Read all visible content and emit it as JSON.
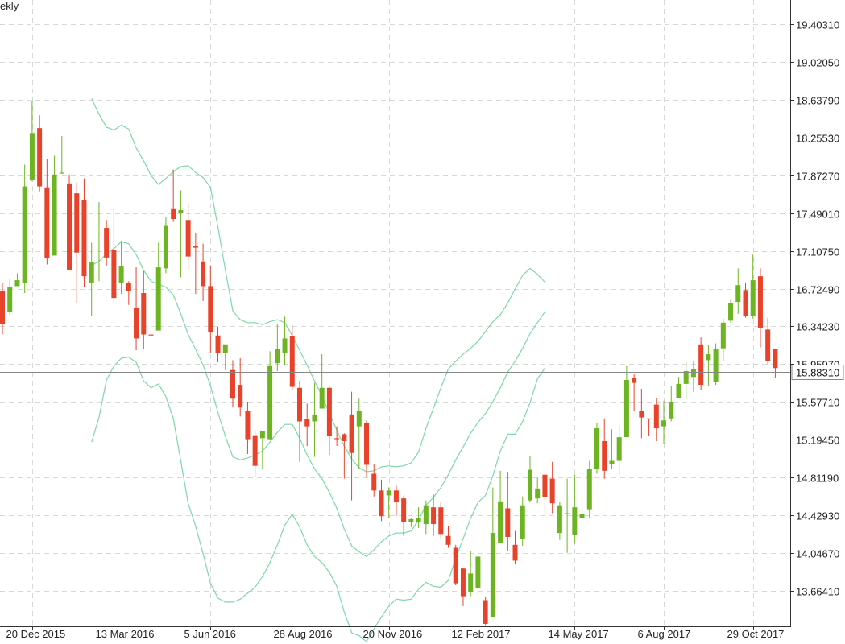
{
  "chart_data": {
    "type": "candlestick",
    "period_label": "ekly",
    "y_ticks": [
      "19.40310",
      "19.02050",
      "18.63790",
      "18.25530",
      "17.87270",
      "17.49010",
      "17.10750",
      "16.72490",
      "16.34230",
      "15.95970",
      "15.57710",
      "15.19450",
      "14.81190",
      "14.42930",
      "14.04670",
      "13.66410"
    ],
    "y_range": [
      13.38,
      19.6
    ],
    "x_ticks": [
      "20 Dec 2015",
      "13 Mar 2016",
      "5 Jun 2016",
      "28 Aug 2016",
      "20 Nov 2016",
      "12 Feb 2017",
      "14 May 2017",
      "6 Aug 2017",
      "29 Oct 2017"
    ],
    "current_price": "15.88310",
    "current_price_value": 15.8831,
    "colors": {
      "up": "#6cb520",
      "down": "#e8432a",
      "band": "#7fd8a8",
      "price_line": "#888888",
      "grid": "#d8d8d8"
    },
    "candles": [
      [
        16.7,
        16.37,
        16.78,
        16.26
      ],
      [
        16.49,
        16.74,
        16.82,
        16.46
      ],
      [
        16.75,
        16.81,
        16.88,
        16.75
      ],
      [
        16.78,
        17.76,
        17.98,
        16.68
      ],
      [
        17.83,
        18.3,
        18.63,
        17.81
      ],
      [
        18.35,
        17.76,
        18.48,
        17.71
      ],
      [
        17.75,
        17.03,
        18.04,
        16.97
      ],
      [
        17.06,
        17.88,
        18.07,
        17.06
      ],
      [
        17.89,
        17.9,
        18.27,
        17.89
      ],
      [
        17.79,
        16.91,
        17.88,
        16.91
      ],
      [
        17.69,
        17.09,
        17.8,
        16.58
      ],
      [
        17.62,
        16.85,
        17.84,
        16.74
      ],
      [
        16.78,
        16.99,
        17.19,
        16.45
      ],
      [
        17.12,
        17.12,
        17.6,
        16.8
      ],
      [
        17.34,
        17.04,
        17.42,
        16.95
      ],
      [
        17.12,
        16.63,
        17.53,
        16.6
      ],
      [
        16.78,
        16.95,
        17.21,
        16.67
      ],
      [
        16.78,
        16.7,
        16.8,
        16.56
      ],
      [
        16.53,
        16.22,
        16.94,
        16.1
      ],
      [
        16.68,
        16.26,
        16.9,
        16.11
      ],
      [
        16.26,
        16.25,
        16.97,
        16.25
      ],
      [
        16.3,
        16.94,
        17.19,
        16.3
      ],
      [
        16.93,
        17.36,
        17.45,
        16.88
      ],
      [
        17.53,
        17.43,
        17.93,
        17.4
      ],
      [
        17.49,
        17.52,
        17.72,
        16.84
      ],
      [
        17.42,
        17.05,
        17.59,
        16.92
      ],
      [
        17.16,
        17.14,
        17.29,
        16.67
      ],
      [
        17.0,
        16.75,
        17.18,
        16.6
      ],
      [
        16.75,
        16.28,
        16.96,
        16.07
      ],
      [
        16.25,
        16.07,
        16.34,
        15.98
      ],
      [
        16.07,
        16.16,
        16.12,
        15.9
      ],
      [
        15.9,
        15.61,
        16.0,
        15.52
      ],
      [
        15.75,
        15.52,
        16.02,
        15.43
      ],
      [
        15.49,
        15.2,
        15.58,
        15.05
      ],
      [
        15.24,
        14.93,
        15.29,
        14.82
      ],
      [
        15.21,
        15.28,
        15.24,
        14.9
      ],
      [
        15.2,
        15.94,
        16.09,
        15.19
      ],
      [
        15.97,
        16.11,
        16.37,
        15.89
      ],
      [
        16.07,
        16.22,
        16.44,
        15.95
      ],
      [
        16.24,
        15.73,
        16.35,
        15.69
      ],
      [
        15.72,
        15.38,
        15.79,
        14.97
      ],
      [
        15.4,
        15.33,
        15.56,
        15.13
      ],
      [
        15.38,
        15.45,
        15.77,
        15.02
      ],
      [
        15.51,
        15.72,
        16.06,
        15.52
      ],
      [
        15.72,
        15.23,
        15.73,
        15.04
      ],
      [
        15.21,
        15.2,
        15.33,
        15.13
      ],
      [
        15.25,
        15.18,
        15.26,
        14.8
      ],
      [
        15.45,
        15.06,
        15.68,
        14.58
      ],
      [
        15.33,
        15.49,
        15.61,
        14.9
      ],
      [
        15.36,
        14.94,
        15.39,
        14.81
      ],
      [
        14.85,
        14.68,
        14.95,
        14.62
      ],
      [
        14.68,
        14.42,
        14.79,
        14.37
      ],
      [
        14.63,
        14.68,
        14.71,
        14.4
      ],
      [
        14.68,
        14.56,
        14.73,
        14.42
      ],
      [
        14.6,
        14.36,
        14.63,
        14.22
      ],
      [
        14.36,
        14.39,
        14.4,
        14.31
      ],
      [
        14.36,
        14.4,
        14.51,
        14.3
      ],
      [
        14.34,
        14.53,
        14.58,
        14.24
      ],
      [
        14.51,
        14.34,
        14.64,
        14.22
      ],
      [
        14.51,
        14.24,
        14.57,
        14.2
      ],
      [
        14.22,
        14.13,
        14.32,
        14.1
      ],
      [
        14.1,
        13.74,
        14.13,
        13.72
      ],
      [
        13.89,
        13.61,
        13.9,
        13.51
      ],
      [
        13.65,
        13.84,
        14.07,
        13.61
      ],
      [
        13.69,
        14.01,
        14.05,
        13.63
      ],
      [
        13.57,
        13.33,
        13.6,
        13.31
      ],
      [
        13.4,
        14.25,
        14.71,
        13.4
      ],
      [
        14.15,
        14.57,
        14.88,
        14.15
      ],
      [
        14.5,
        14.21,
        14.87,
        14.07
      ],
      [
        14.13,
        13.97,
        14.27,
        13.94
      ],
      [
        14.19,
        14.53,
        14.62,
        14.12
      ],
      [
        14.58,
        14.89,
        15.03,
        14.56
      ],
      [
        14.6,
        14.7,
        14.82,
        14.55
      ],
      [
        14.84,
        14.61,
        14.88,
        14.42
      ],
      [
        14.8,
        14.55,
        14.97,
        14.45
      ],
      [
        14.25,
        14.53,
        14.56,
        14.18
      ],
      [
        14.44,
        14.45,
        14.8,
        14.05
      ],
      [
        14.23,
        14.51,
        14.84,
        14.14
      ],
      [
        14.4,
        14.44,
        14.54,
        14.29
      ],
      [
        14.49,
        14.9,
        14.98,
        14.4
      ],
      [
        14.9,
        15.31,
        15.36,
        14.85
      ],
      [
        15.18,
        14.88,
        15.41,
        14.8
      ],
      [
        14.95,
        14.98,
        15.3,
        14.9
      ],
      [
        14.98,
        15.22,
        15.34,
        14.84
      ],
      [
        15.22,
        15.8,
        15.94,
        15.22
      ],
      [
        15.82,
        15.77,
        15.86,
        15.48
      ],
      [
        15.49,
        15.42,
        15.71,
        15.21
      ],
      [
        15.41,
        15.4,
        15.38,
        15.23
      ],
      [
        15.55,
        15.31,
        15.62,
        15.18
      ],
      [
        15.33,
        15.39,
        15.59,
        15.15
      ],
      [
        15.41,
        15.58,
        15.74,
        15.38
      ],
      [
        15.62,
        15.76,
        15.83,
        15.62
      ],
      [
        15.76,
        15.89,
        15.98,
        15.6
      ],
      [
        15.83,
        15.91,
        15.99,
        15.68
      ],
      [
        16.16,
        15.75,
        16.23,
        15.7
      ],
      [
        16.0,
        16.06,
        16.15,
        15.74
      ],
      [
        15.78,
        16.11,
        16.17,
        15.75
      ],
      [
        16.12,
        16.38,
        16.42,
        15.99
      ],
      [
        16.4,
        16.58,
        16.61,
        16.38
      ],
      [
        16.59,
        16.76,
        16.93,
        16.47
      ],
      [
        16.71,
        16.45,
        16.78,
        16.43
      ],
      [
        16.45,
        16.81,
        17.07,
        16.42
      ],
      [
        16.85,
        16.33,
        16.93,
        16.13
      ],
      [
        16.31,
        15.99,
        16.43,
        15.95
      ],
      [
        16.11,
        15.92,
        16.1,
        15.82
      ]
    ],
    "bollinger": {
      "start_index": 12,
      "upper": [
        18.65,
        18.49,
        18.36,
        18.33,
        18.38,
        18.34,
        18.15,
        18.02,
        17.87,
        17.78,
        17.84,
        17.91,
        17.96,
        17.97,
        17.9,
        17.85,
        17.75,
        17.35,
        16.91,
        16.5,
        16.41,
        16.38,
        16.38,
        16.36,
        16.39,
        16.41,
        16.38,
        16.25,
        16.1,
        15.95,
        15.79,
        15.64,
        15.46,
        15.29,
        15.13,
        15.0,
        14.91,
        14.87,
        14.88,
        14.92,
        14.93,
        14.92,
        14.93,
        14.96,
        15.07,
        15.31,
        15.51,
        15.72,
        15.91,
        15.99,
        16.06,
        16.12,
        16.19,
        16.29,
        16.39,
        16.46,
        16.58,
        16.72,
        16.86,
        16.93,
        16.87,
        16.79
      ],
      "middle": [
        16.96,
        17.0,
        17.08,
        17.13,
        17.2,
        17.18,
        17.07,
        16.91,
        16.8,
        16.77,
        16.74,
        16.66,
        16.47,
        16.26,
        16.11,
        15.95,
        15.74,
        15.47,
        15.23,
        15.02,
        14.99,
        15.01,
        15.04,
        15.08,
        15.17,
        15.27,
        15.35,
        15.35,
        15.21,
        15.04,
        14.9,
        14.8,
        14.66,
        14.5,
        14.29,
        14.12,
        14.06,
        14.01,
        14.08,
        14.16,
        14.22,
        14.25,
        14.25,
        14.27,
        14.38,
        14.53,
        14.61,
        14.71,
        14.84,
        14.99,
        15.12,
        15.26,
        15.37,
        15.46,
        15.58,
        15.72,
        15.88,
        15.99,
        16.12,
        16.27,
        16.38,
        16.49
      ],
      "lower": [
        15.17,
        15.42,
        15.8,
        15.94,
        16.02,
        16.03,
        15.98,
        15.79,
        15.72,
        15.76,
        15.63,
        15.41,
        14.98,
        14.55,
        14.32,
        14.04,
        13.74,
        13.59,
        13.55,
        13.55,
        13.58,
        13.64,
        13.7,
        13.81,
        13.95,
        14.13,
        14.33,
        14.44,
        14.31,
        14.13,
        14.01,
        13.95,
        13.85,
        13.71,
        13.45,
        13.24,
        13.21,
        13.15,
        13.28,
        13.4,
        13.51,
        13.58,
        13.57,
        13.58,
        13.68,
        13.75,
        13.71,
        13.7,
        13.77,
        13.99,
        14.19,
        14.4,
        14.56,
        14.63,
        14.83,
        15.08,
        15.25,
        15.25,
        15.38,
        15.57,
        15.81,
        15.92
      ]
    }
  }
}
